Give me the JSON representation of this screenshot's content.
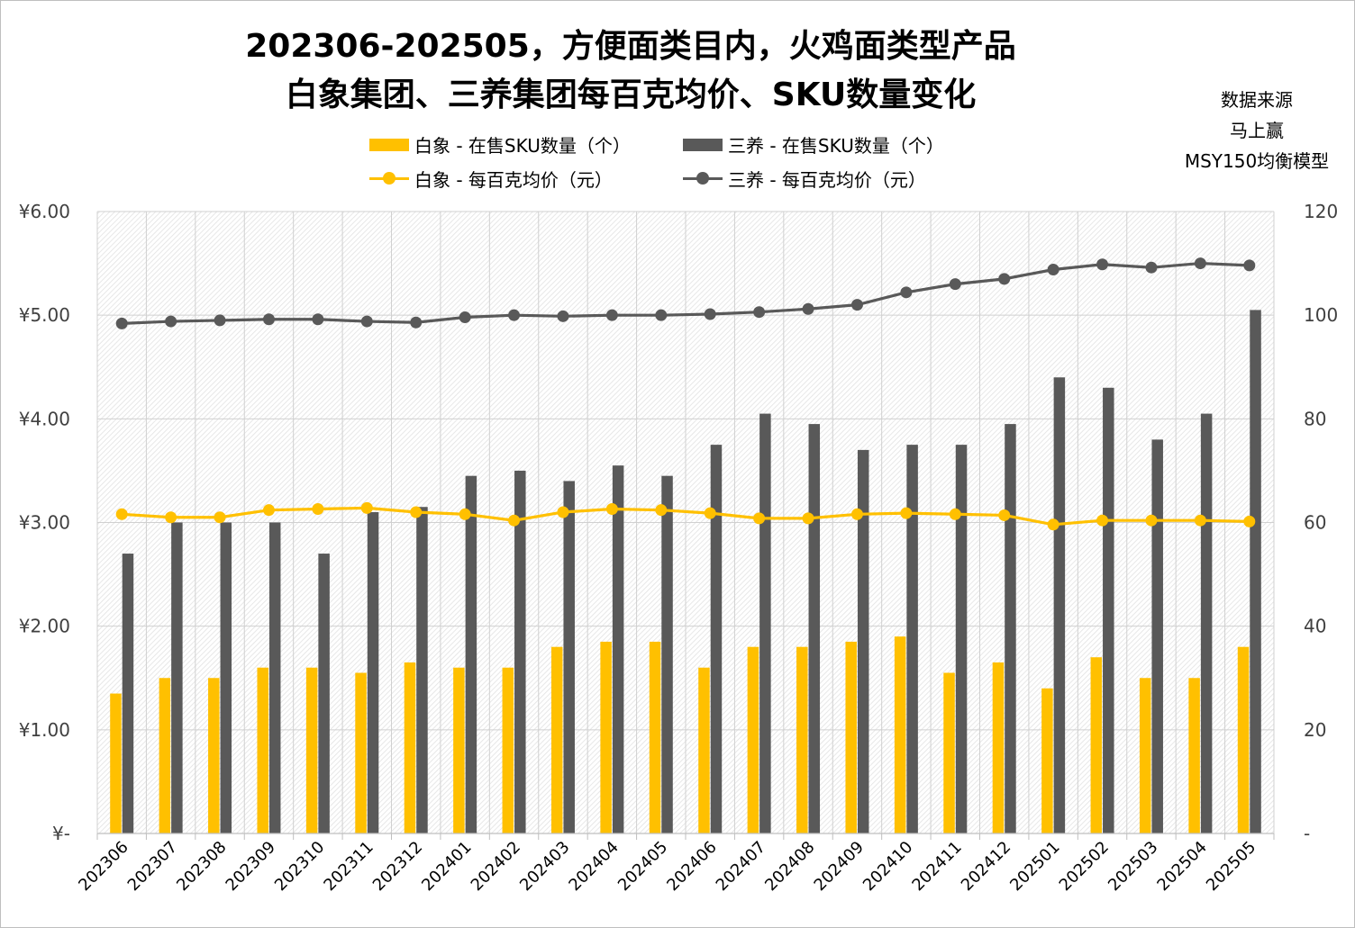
{
  "title_line1": "202306-202505，方便面类目内，火鸡面类型产品",
  "title_line2": "白象集团、三养集团每百克均价、SKU数量变化",
  "source": [
    "数据来源",
    "马上赢",
    "MSY150均衡模型"
  ],
  "legend": {
    "baixiang_sku": "白象 - 在售SKU数量（个）",
    "samyang_sku": "三养 - 在售SKU数量（个）",
    "baixiang_price": "白象 - 每百克均价（元）",
    "samyang_price": "三养 - 每百克均价（元）"
  },
  "colors": {
    "baixiang": "#FFC000",
    "samyang": "#595959"
  },
  "chart_data": {
    "type": "bar",
    "categories": [
      "202306",
      "202307",
      "202308",
      "202309",
      "202310",
      "202311",
      "202312",
      "202401",
      "202402",
      "202403",
      "202404",
      "202405",
      "202406",
      "202407",
      "202408",
      "202409",
      "202410",
      "202411",
      "202412",
      "202501",
      "202502",
      "202503",
      "202504",
      "202505"
    ],
    "series": [
      {
        "name": "白象 - 在售SKU数量（个）",
        "type": "bar",
        "axis": "right",
        "values": [
          27,
          30,
          30,
          32,
          32,
          31,
          33,
          32,
          32,
          36,
          37,
          37,
          32,
          36,
          36,
          37,
          38,
          31,
          33,
          28,
          34,
          30,
          30,
          36
        ]
      },
      {
        "name": "三养 - 在售SKU数量（个）",
        "type": "bar",
        "axis": "right",
        "values": [
          54,
          60,
          60,
          60,
          54,
          62,
          63,
          69,
          70,
          68,
          71,
          69,
          75,
          81,
          79,
          74,
          75,
          75,
          79,
          88,
          86,
          76,
          81,
          101
        ]
      },
      {
        "name": "白象 - 每百克均价（元）",
        "type": "line",
        "axis": "left",
        "values": [
          3.08,
          3.05,
          3.05,
          3.12,
          3.13,
          3.14,
          3.1,
          3.08,
          3.02,
          3.1,
          3.13,
          3.12,
          3.09,
          3.04,
          3.04,
          3.08,
          3.09,
          3.08,
          3.07,
          2.98,
          3.02,
          3.02,
          3.02,
          3.01
        ]
      },
      {
        "name": "三养 - 每百克均价（元）",
        "type": "line",
        "axis": "left",
        "values": [
          4.92,
          4.94,
          4.95,
          4.96,
          4.96,
          4.94,
          4.93,
          4.98,
          5.0,
          4.99,
          5.0,
          5.0,
          5.01,
          5.03,
          5.06,
          5.1,
          5.22,
          5.3,
          5.35,
          5.44,
          5.49,
          5.46,
          5.5,
          5.48
        ]
      }
    ],
    "y_left": {
      "min": 0,
      "max": 6,
      "ticks": [
        "¥-",
        "¥1.00",
        "¥2.00",
        "¥3.00",
        "¥4.00",
        "¥5.00",
        "¥6.00"
      ]
    },
    "y_right": {
      "min": 0,
      "max": 120,
      "ticks": [
        "-",
        "20",
        "40",
        "60",
        "80",
        "100",
        "120"
      ]
    },
    "grid": true,
    "legend_position": "top"
  }
}
